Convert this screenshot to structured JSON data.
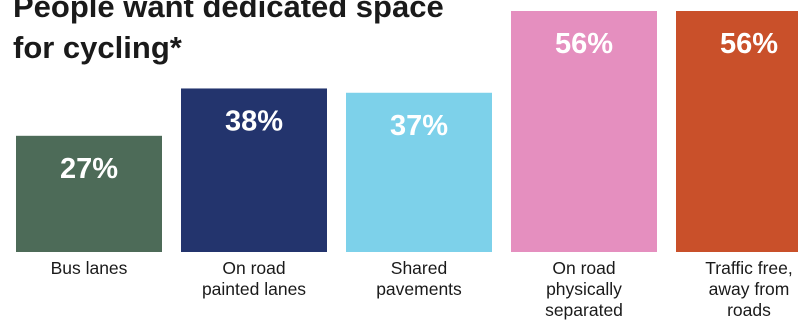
{
  "chart_data": {
    "type": "bar",
    "title": "People want dedicated space for cycling*",
    "categories": [
      "Bus lanes",
      "On road painted lanes",
      "Shared pavements",
      "On road physically separated",
      "Traffic free, away from roads"
    ],
    "category_lines": [
      [
        "Bus lanes"
      ],
      [
        "On road",
        "painted lanes"
      ],
      [
        "Shared",
        "pavements"
      ],
      [
        "On road",
        "physically",
        "separated"
      ],
      [
        "Traffic free,",
        "away from",
        "roads"
      ]
    ],
    "values": [
      27,
      38,
      37,
      56,
      56
    ],
    "value_labels": [
      "27%",
      "38%",
      "37%",
      "56%",
      "56%"
    ],
    "colors": [
      "#4d6b58",
      "#23346d",
      "#7dd1ea",
      "#e58fbf",
      "#c9502a"
    ],
    "ylim": [
      0,
      56
    ],
    "xlabel": "",
    "ylabel": "",
    "grid": false,
    "legend": "none"
  }
}
